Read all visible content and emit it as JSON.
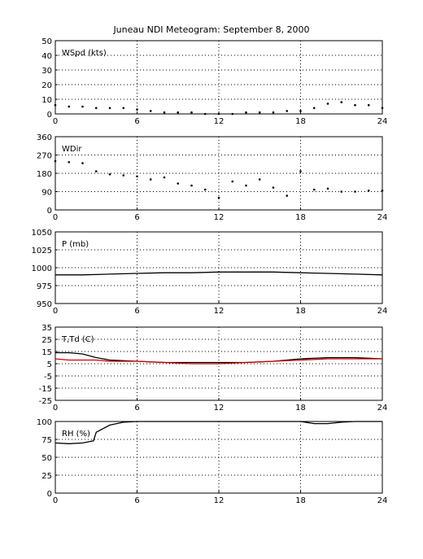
{
  "title": "Juneau NDI Meteogram: September  8, 2000",
  "chart_data": [
    {
      "type": "scatter",
      "label": "WSpd (kts)",
      "xlim": [
        0,
        24
      ],
      "xticks": [
        0,
        6,
        12,
        18,
        24
      ],
      "ylim": [
        0,
        50
      ],
      "yticks": [
        0,
        10,
        20,
        30,
        40,
        50
      ],
      "grid": true,
      "series": [
        {
          "color": "#000000",
          "x": [
            0,
            1,
            2,
            3,
            4,
            5,
            6,
            7,
            8,
            9,
            10,
            11,
            12,
            13,
            14,
            15,
            16,
            17,
            18,
            19,
            20,
            21,
            22,
            23,
            24
          ],
          "y": [
            6,
            5,
            5,
            4,
            4,
            4,
            3,
            2,
            1,
            1,
            1,
            0,
            0,
            0,
            1,
            1,
            1,
            2,
            2,
            4,
            7,
            8,
            6,
            6,
            4
          ]
        }
      ]
    },
    {
      "type": "scatter",
      "label": "WDir",
      "xlim": [
        0,
        24
      ],
      "xticks": [
        0,
        6,
        12,
        18,
        24
      ],
      "ylim": [
        0,
        360
      ],
      "yticks": [
        0,
        90,
        180,
        270,
        360
      ],
      "grid": true,
      "series": [
        {
          "color": "#000000",
          "x": [
            0,
            1,
            2,
            3,
            4,
            5,
            6,
            7,
            8,
            9,
            10,
            11,
            12,
            13,
            14,
            15,
            16,
            17,
            18,
            19,
            20,
            21,
            22,
            23,
            24
          ],
          "y": [
            240,
            235,
            230,
            190,
            175,
            170,
            165,
            150,
            160,
            130,
            120,
            100,
            60,
            140,
            120,
            150,
            110,
            70,
            190,
            100,
            105,
            90,
            90,
            95,
            95
          ]
        }
      ]
    },
    {
      "type": "line",
      "label": "P (mb)",
      "xlim": [
        0,
        24
      ],
      "xticks": [
        0,
        6,
        12,
        18,
        24
      ],
      "ylim": [
        950,
        1050
      ],
      "yticks": [
        950,
        975,
        1000,
        1025,
        1050
      ],
      "grid": true,
      "series": [
        {
          "color": "#000000",
          "x": [
            0,
            2,
            4,
            6,
            8,
            10,
            12,
            14,
            16,
            18,
            20,
            22,
            24
          ],
          "y": [
            990,
            990,
            991,
            992,
            993,
            993,
            994,
            994,
            994,
            993,
            992,
            991,
            990
          ]
        }
      ]
    },
    {
      "type": "line",
      "label": "T,Td (C)",
      "xlim": [
        0,
        24
      ],
      "xticks": [
        0,
        6,
        12,
        18,
        24
      ],
      "ylim": [
        -25,
        35
      ],
      "yticks": [
        -25,
        -15,
        -5,
        5,
        15,
        25,
        35
      ],
      "grid": true,
      "series": [
        {
          "color": "#000000",
          "x": [
            0,
            1,
            2,
            3,
            4,
            6,
            8,
            10,
            12,
            14,
            16,
            18,
            20,
            22,
            24
          ],
          "y": [
            14,
            14,
            13,
            10,
            8,
            7,
            6,
            6,
            6,
            6,
            7,
            9,
            10,
            10,
            9
          ]
        },
        {
          "color": "#cc0000",
          "x": [
            0,
            1,
            2,
            3,
            4,
            6,
            8,
            10,
            12,
            14,
            16,
            18,
            20,
            22,
            24
          ],
          "y": [
            9,
            8,
            8,
            8,
            7,
            7,
            6,
            5,
            5,
            6,
            7,
            8,
            9,
            9,
            9
          ]
        }
      ]
    },
    {
      "type": "line",
      "label": "RH (%)",
      "xlim": [
        0,
        24
      ],
      "xticks": [
        0,
        6,
        12,
        18,
        24
      ],
      "ylim": [
        0,
        100
      ],
      "yticks": [
        0,
        25,
        50,
        75,
        100
      ],
      "grid": true,
      "series": [
        {
          "color": "#000000",
          "x": [
            0,
            1,
            2,
            2.8,
            3,
            4,
            5,
            6,
            7,
            8,
            10,
            12,
            14,
            16,
            18,
            19,
            20,
            21,
            22,
            23,
            24
          ],
          "y": [
            70,
            69,
            70,
            73,
            85,
            95,
            99,
            100,
            100,
            100,
            100,
            100,
            100,
            100,
            100,
            97,
            97,
            99,
            100,
            100,
            100
          ]
        }
      ]
    }
  ]
}
